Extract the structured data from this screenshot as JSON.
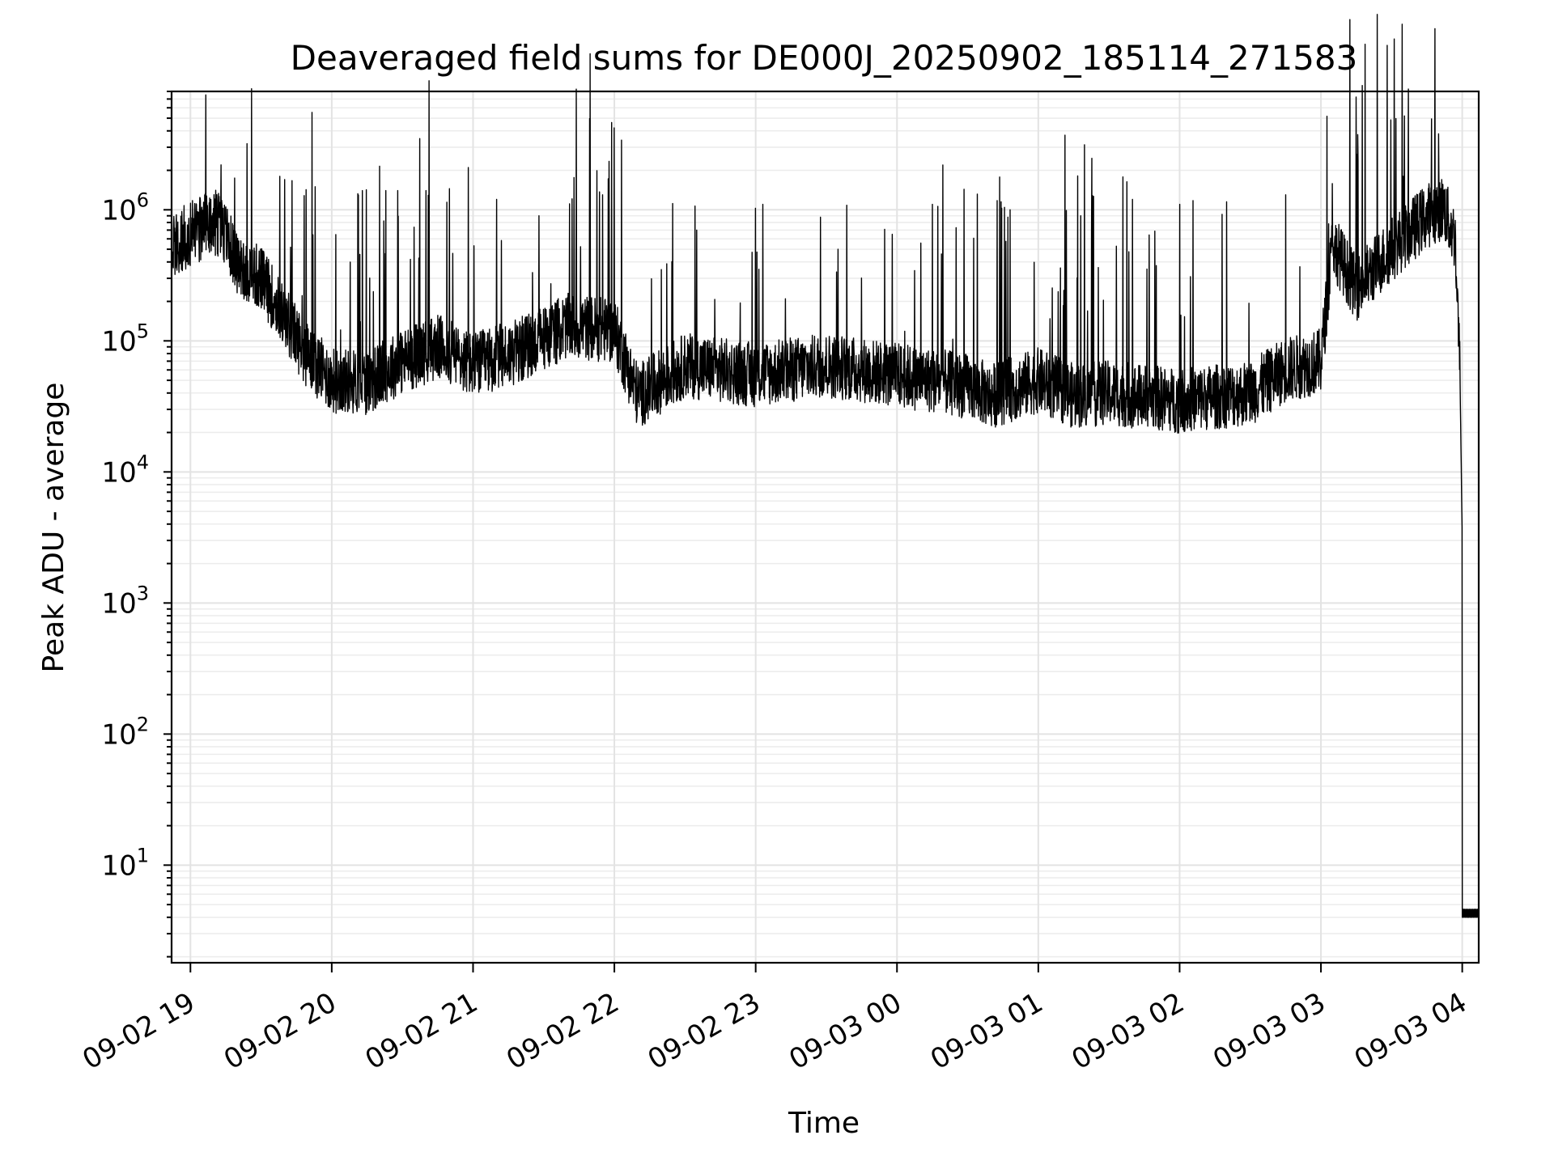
{
  "chart_data": {
    "type": "line",
    "title": "Deaveraged field sums for DE000J_20250902_185114_271583",
    "xlabel": "Time",
    "ylabel": "Peak ADU - average",
    "x_axis_type": "datetime",
    "xlim": [
      "09-02 18:52",
      "09-03 04:07"
    ],
    "yscale": "log",
    "ylim": [
      1.8,
      8000000
    ],
    "grid": "both major and minor",
    "line_color": "#000000",
    "x_ticks": [
      {
        "label": "09-02 19",
        "hours": 0
      },
      {
        "label": "09-02 20",
        "hours": 1
      },
      {
        "label": "09-02 21",
        "hours": 2
      },
      {
        "label": "09-02 22",
        "hours": 3
      },
      {
        "label": "09-02 23",
        "hours": 4
      },
      {
        "label": "09-03 00",
        "hours": 5
      },
      {
        "label": "09-03 01",
        "hours": 6
      },
      {
        "label": "09-03 02",
        "hours": 7
      },
      {
        "label": "09-03 03",
        "hours": 8
      },
      {
        "label": "09-03 04",
        "hours": 9
      }
    ],
    "y_ticks": [
      {
        "base": "10",
        "exp": "1",
        "value": 10
      },
      {
        "base": "10",
        "exp": "2",
        "value": 100
      },
      {
        "base": "10",
        "exp": "3",
        "value": 1000
      },
      {
        "base": "10",
        "exp": "4",
        "value": 10000
      },
      {
        "base": "10",
        "exp": "5",
        "value": 100000
      },
      {
        "base": "10",
        "exp": "6",
        "value": 1000000
      }
    ],
    "series": [
      {
        "baseline": [
          [
            "09-02 18:52",
            550000
          ],
          [
            "09-02 19:00",
            650000
          ],
          [
            "09-02 19:10",
            820000
          ],
          [
            "09-02 19:15",
            650000
          ],
          [
            "09-02 19:20",
            380000
          ],
          [
            "09-02 19:30",
            300000
          ],
          [
            "09-02 19:40",
            150000
          ],
          [
            "09-02 19:50",
            75000
          ],
          [
            "09-02 20:00",
            50000
          ],
          [
            "09-02 20:15",
            48000
          ],
          [
            "09-02 20:30",
            70000
          ],
          [
            "09-02 20:45",
            90000
          ],
          [
            "09-02 21:00",
            65000
          ],
          [
            "09-02 21:20",
            85000
          ],
          [
            "09-02 21:40",
            130000
          ],
          [
            "09-02 22:00",
            120000
          ],
          [
            "09-02 22:10",
            38000
          ],
          [
            "09-02 22:30",
            65000
          ],
          [
            "09-02 23:00",
            55000
          ],
          [
            "09-02 23:30",
            65000
          ],
          [
            "09-03 00:00",
            55000
          ],
          [
            "09-03 00:30",
            45000
          ],
          [
            "09-03 00:40",
            38000
          ],
          [
            "09-03 01:00",
            50000
          ],
          [
            "09-03 01:15",
            38000
          ],
          [
            "09-03 01:30",
            40000
          ],
          [
            "09-03 02:00",
            35000
          ],
          [
            "09-03 02:30",
            40000
          ],
          [
            "09-03 02:45",
            60000
          ],
          [
            "09-03 03:00",
            70000
          ],
          [
            "09-03 03:05",
            550000
          ],
          [
            "09-03 03:15",
            250000
          ],
          [
            "09-03 03:30",
            500000
          ],
          [
            "09-03 03:45",
            900000
          ],
          [
            "09-03 03:52",
            1050000
          ],
          [
            "09-03 03:57",
            600000
          ],
          [
            "09-03 03:59",
            60000
          ],
          [
            "09-03 04:00",
            3000
          ],
          [
            "09-03 04:00",
            4
          ],
          [
            "09-03 04:07",
            4
          ]
        ],
        "spikes": [
          [
            "09-02 19:13",
            2200000
          ],
          [
            "09-02 19:38",
            1800000
          ],
          [
            "09-02 19:40",
            1700000
          ],
          [
            "09-02 19:53",
            1500000
          ],
          [
            "09-02 20:13",
            1400000
          ],
          [
            "09-02 20:23",
            1400000
          ],
          [
            "09-02 20:28",
            1400000
          ],
          [
            "09-02 20:40",
            1400000
          ],
          [
            "09-02 20:50",
            1450000
          ],
          [
            "09-02 20:58",
            2100000
          ],
          [
            "09-02 21:10",
            1200000
          ],
          [
            "09-02 21:28",
            900000
          ],
          [
            "09-02 21:55",
            1300000
          ],
          [
            "09-02 22:03",
            3400000
          ],
          [
            "09-02 22:20",
            350000
          ],
          [
            "09-02 22:35",
            700000
          ],
          [
            "09-02 23:03",
            1100000
          ],
          [
            "09-02 23:35",
            500000
          ],
          [
            "09-02 23:58",
            650000
          ],
          [
            "09-03 00:15",
            1100000
          ],
          [
            "09-03 00:48",
            1000000
          ],
          [
            "09-03 01:18",
            900000
          ],
          [
            "09-03 01:40",
            1200000
          ],
          [
            "09-03 02:00",
            1100000
          ],
          [
            "09-03 02:20",
            1150000
          ],
          [
            "09-03 02:45",
            1300000
          ],
          [
            "09-03 03:15",
            1500000
          ],
          [
            "09-03 03:35",
            1800000
          ],
          [
            "09-03 03:50",
            3800000
          ]
        ]
      }
    ]
  }
}
